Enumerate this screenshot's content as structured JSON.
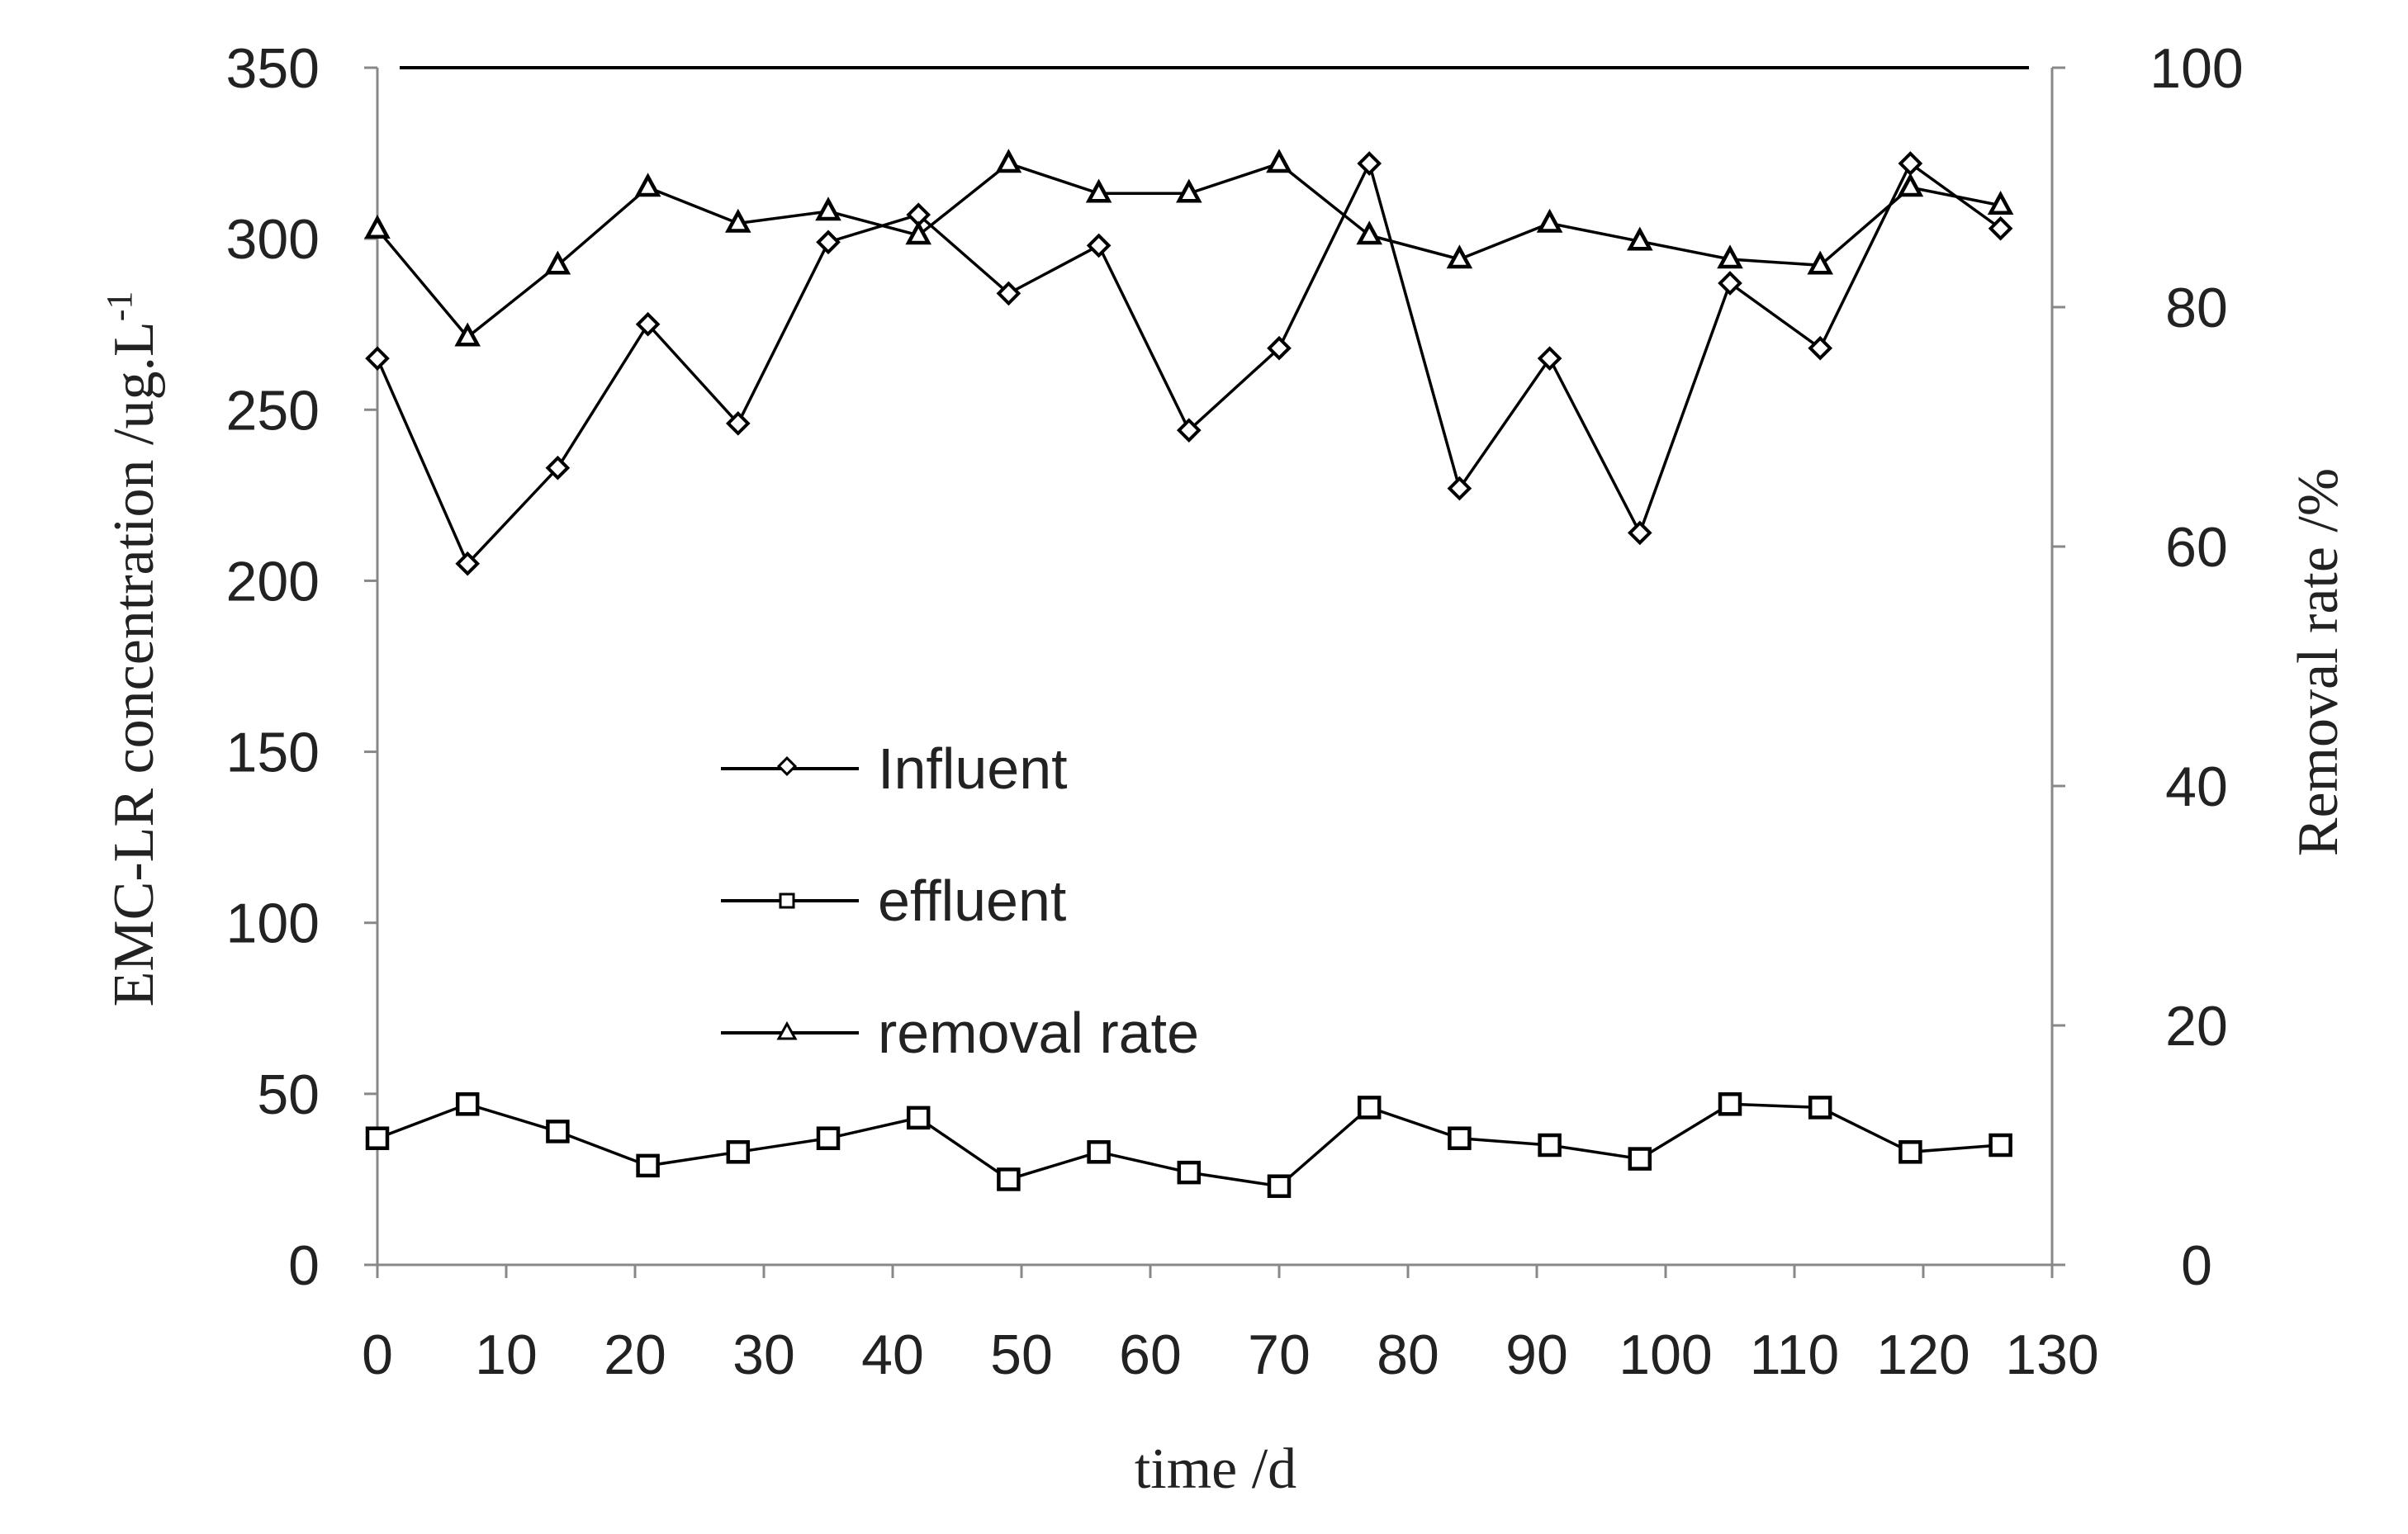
{
  "chart_data": {
    "type": "line",
    "xlabel": "time /d",
    "ylabel_left": "EMC-LR concentration /ug.L",
    "ylabel_left_sup": "-1",
    "ylabel_right": "Removal rate /%",
    "xlim": [
      0,
      130
    ],
    "ylim_left": [
      0,
      350
    ],
    "ylim_right": [
      0,
      100
    ],
    "x_ticks": [
      "0",
      "10",
      "20",
      "30",
      "40",
      "50",
      "60",
      "70",
      "80",
      "90",
      "100",
      "110",
      "120",
      "130"
    ],
    "y_left_ticks": [
      "0",
      "50",
      "100",
      "150",
      "200",
      "250",
      "300",
      "350"
    ],
    "y_right_ticks": [
      "0",
      "20",
      "40",
      "60",
      "80",
      "100"
    ],
    "grid": false,
    "legend_position": "center-left",
    "x": [
      0,
      7,
      14,
      21,
      28,
      35,
      42,
      49,
      56,
      63,
      70,
      77,
      84,
      91,
      98,
      105,
      112,
      119,
      126
    ],
    "series": [
      {
        "name": "Influent",
        "axis": "left",
        "marker": "diamond",
        "values": [
          265,
          205,
          233,
          275,
          246,
          299,
          307,
          284,
          298,
          244,
          268,
          322,
          227,
          265,
          214,
          287,
          268,
          322,
          303
        ]
      },
      {
        "name": "effluent",
        "axis": "left",
        "marker": "square",
        "values": [
          37,
          47,
          39,
          29,
          33,
          37,
          43,
          25,
          33,
          27,
          23,
          46,
          37,
          35,
          31,
          47,
          46,
          33,
          35
        ]
      },
      {
        "name": "removal rate",
        "axis": "right",
        "marker": "triangle",
        "values": [
          86.5,
          77.5,
          83.5,
          90,
          87,
          88,
          86,
          92,
          89.5,
          89.5,
          92,
          86,
          84,
          87,
          85.5,
          84,
          83.5,
          90,
          88.5
        ]
      }
    ]
  }
}
